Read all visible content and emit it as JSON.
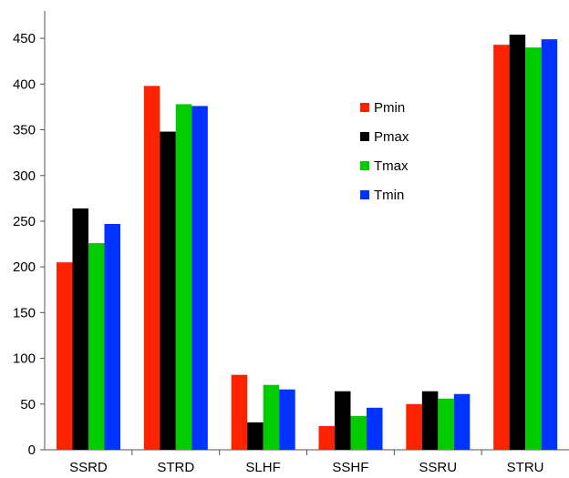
{
  "chart_data": {
    "type": "bar",
    "categories": [
      "SSRD",
      "STRD",
      "SLHF",
      "SSHF",
      "SSRU",
      "STRU"
    ],
    "series": [
      {
        "name": "Pmin",
        "color": "#ff2200",
        "values": [
          205,
          398,
          82,
          26,
          50,
          443
        ]
      },
      {
        "name": "Pmax",
        "color": "#000000",
        "values": [
          264,
          348,
          30,
          64,
          64,
          454
        ]
      },
      {
        "name": "Tmax",
        "color": "#00cc00",
        "values": [
          226,
          378,
          71,
          37,
          56,
          440
        ]
      },
      {
        "name": "Tmin",
        "color": "#0033ff",
        "values": [
          247,
          376,
          66,
          46,
          61,
          449
        ]
      }
    ],
    "ylim": [
      0,
      480
    ],
    "yticks": [
      0,
      50,
      100,
      150,
      200,
      250,
      300,
      350,
      400,
      450
    ],
    "grid": false,
    "legend_position": "upper-center-right",
    "title": "",
    "xlabel": "",
    "ylabel": ""
  }
}
